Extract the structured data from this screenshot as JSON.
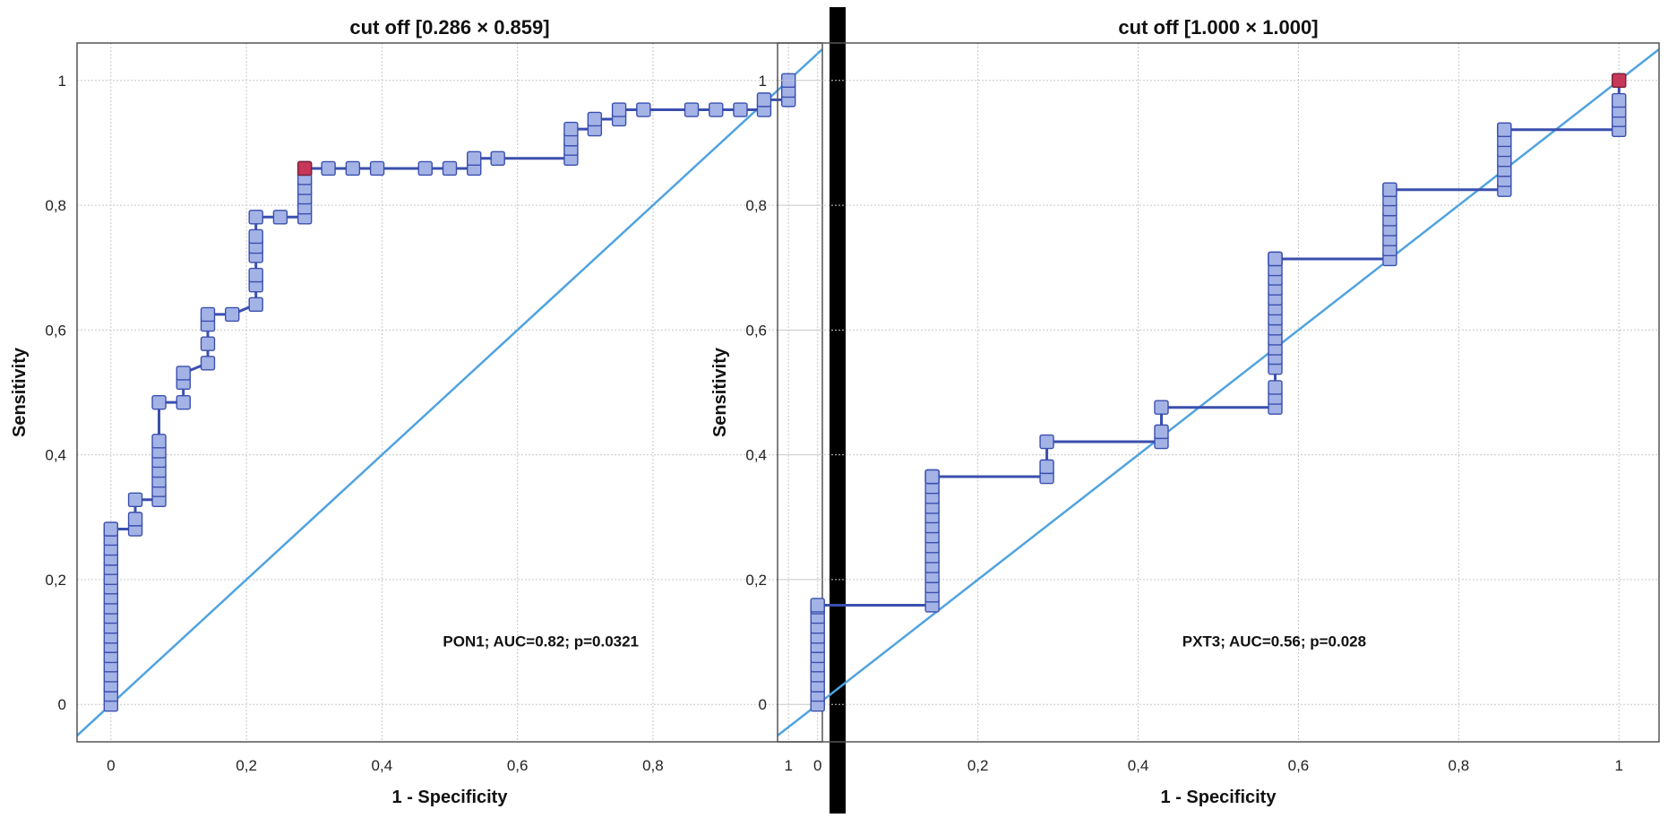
{
  "chart_data": [
    {
      "type": "line",
      "title": "cut off [0.286 × 0.859]",
      "xlabel": "1 - Specificity",
      "ylabel": "Sensitivity",
      "xlim": [
        -0.05,
        1.05
      ],
      "ylim": [
        -0.06,
        1.06
      ],
      "xticks": [
        0,
        0.2,
        0.4,
        0.6,
        0.8,
        1
      ],
      "xtick_labels": [
        "0",
        "0,2",
        "0,4",
        "0,6",
        "0,8",
        "1"
      ],
      "yticks": [
        0,
        0.2,
        0.4,
        0.6,
        0.8,
        1
      ],
      "ytick_labels": [
        "0",
        "0,2",
        "0,4",
        "0,6",
        "0,8",
        "1"
      ],
      "annotation": "PON1; AUC=0.82; p=0.0321",
      "cutoff": [
        0.286,
        0.859
      ],
      "reference_line": [
        [
          0,
          0
        ],
        [
          1,
          1
        ]
      ],
      "series": [
        {
          "name": "PON1",
          "x": [
            0,
            0,
            0,
            0,
            0,
            0,
            0,
            0,
            0,
            0,
            0,
            0,
            0,
            0,
            0,
            0,
            0,
            0,
            0,
            0,
            0.036,
            0.036,
            0.036,
            0.071,
            0.071,
            0.071,
            0.071,
            0.071,
            0.071,
            0.071,
            0.071,
            0.107,
            0.107,
            0.107,
            0.143,
            0.143,
            0.143,
            0.143,
            0.179,
            0.214,
            0.214,
            0.214,
            0.214,
            0.214,
            0.214,
            0.214,
            0.25,
            0.286,
            0.286,
            0.286,
            0.286,
            0.286,
            0.286,
            0.286,
            0.321,
            0.357,
            0.393,
            0.464,
            0.5,
            0.536,
            0.536,
            0.571,
            0.679,
            0.679,
            0.679,
            0.679,
            0.714,
            0.714,
            0.75,
            0.75,
            0.786,
            0.857,
            0.893,
            0.929,
            0.964,
            0.964,
            1,
            1,
            1
          ],
          "y": [
            0,
            0.016,
            0.031,
            0.047,
            0.063,
            0.078,
            0.094,
            0.109,
            0.125,
            0.141,
            0.156,
            0.172,
            0.188,
            0.203,
            0.219,
            0.234,
            0.25,
            0.266,
            0.281,
            0.281,
            0.281,
            0.297,
            0.328,
            0.328,
            0.344,
            0.359,
            0.375,
            0.391,
            0.406,
            0.422,
            0.484,
            0.484,
            0.516,
            0.531,
            0.547,
            0.578,
            0.609,
            0.625,
            0.625,
            0.641,
            0.672,
            0.688,
            0.719,
            0.734,
            0.75,
            0.781,
            0.781,
            0.781,
            0.797,
            0.813,
            0.828,
            0.844,
            0.859,
            0.859,
            0.859,
            0.859,
            0.859,
            0.859,
            0.859,
            0.859,
            0.875,
            0.875,
            0.875,
            0.891,
            0.906,
            0.922,
            0.922,
            0.938,
            0.938,
            0.953,
            0.953,
            0.953,
            0.953,
            0.953,
            0.953,
            0.969,
            0.969,
            0.984,
            1.0
          ]
        }
      ]
    },
    {
      "type": "line",
      "title": "cut off [1.000 × 1.000]",
      "xlabel": "1 - Specificity",
      "ylabel": "Sensitivity",
      "xlim": [
        -0.05,
        1.05
      ],
      "ylim": [
        -0.06,
        1.06
      ],
      "xticks": [
        0,
        0.2,
        0.4,
        0.6,
        0.8,
        1
      ],
      "xtick_labels": [
        "0",
        "0,2",
        "0,4",
        "0,6",
        "0,8",
        "1"
      ],
      "yticks": [
        0,
        0.2,
        0.4,
        0.6,
        0.8,
        1
      ],
      "ytick_labels": [
        "0",
        "0,2",
        "0,4",
        "0,6",
        "0,8",
        "1"
      ],
      "annotation": "PXT3; AUC=0.56; p=0.028",
      "cutoff": [
        1.0,
        1.0
      ],
      "reference_line": [
        [
          0,
          0
        ],
        [
          1,
          1
        ]
      ],
      "series": [
        {
          "name": "PXT3",
          "x": [
            0,
            0,
            0,
            0,
            0,
            0,
            0,
            0,
            0,
            0,
            0,
            0,
            0.143,
            0.143,
            0.143,
            0.143,
            0.143,
            0.143,
            0.143,
            0.143,
            0.143,
            0.143,
            0.143,
            0.143,
            0.143,
            0.143,
            0.143,
            0.143,
            0.143,
            0.143,
            0.286,
            0.286,
            0.286,
            0.429,
            0.429,
            0.429,
            0.571,
            0.571,
            0.571,
            0.571,
            0.571,
            0.571,
            0.571,
            0.571,
            0.571,
            0.571,
            0.571,
            0.571,
            0.571,
            0.571,
            0.571,
            0.571,
            0.571,
            0.714,
            0.714,
            0.714,
            0.714,
            0.714,
            0.714,
            0.714,
            0.714,
            0.714,
            0.857,
            0.857,
            0.857,
            0.857,
            0.857,
            0.857,
            0.857,
            0.857,
            1,
            1,
            1,
            1,
            1
          ],
          "y": [
            0,
            0.016,
            0.031,
            0.047,
            0.063,
            0.078,
            0.094,
            0.109,
            0.125,
            0.141,
            0.156,
            0.159,
            0.159,
            0.175,
            0.19,
            0.206,
            0.222,
            0.238,
            0.254,
            0.27,
            0.286,
            0.302,
            0.317,
            0.333,
            0.349,
            0.365,
            0.365,
            0.365,
            0.365,
            0.365,
            0.365,
            0.381,
            0.421,
            0.421,
            0.437,
            0.476,
            0.476,
            0.492,
            0.508,
            0.54,
            0.556,
            0.571,
            0.587,
            0.603,
            0.619,
            0.635,
            0.651,
            0.667,
            0.683,
            0.698,
            0.714,
            0.714,
            0.714,
            0.714,
            0.73,
            0.746,
            0.762,
            0.778,
            0.794,
            0.81,
            0.825,
            0.825,
            0.825,
            0.841,
            0.857,
            0.873,
            0.889,
            0.905,
            0.921,
            0.921,
            0.921,
            0.937,
            0.952,
            0.968,
            1.0
          ]
        }
      ]
    }
  ]
}
